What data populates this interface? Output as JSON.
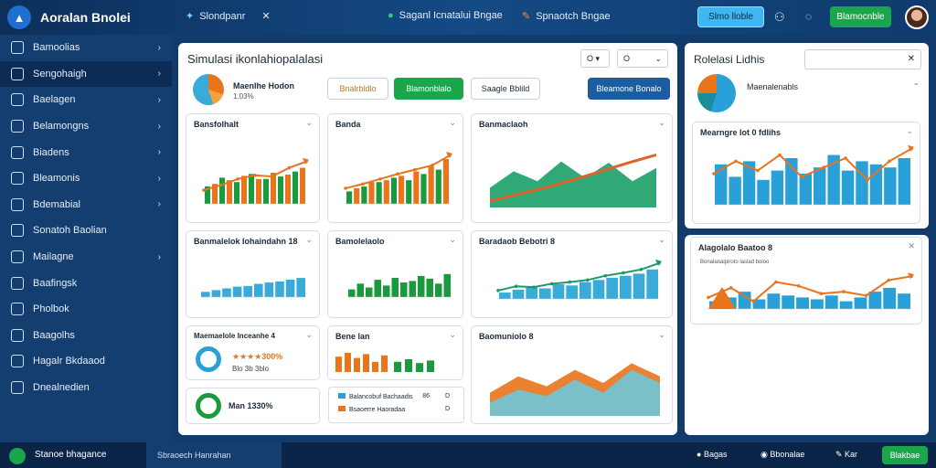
{
  "app": {
    "title": "Aoralan Bnolei",
    "tab": "Slondpanr",
    "items": [
      "Saganl Icnatalui Bngae",
      "Spnaotch Bngae"
    ],
    "primary_btn": "Slmo lloble",
    "green_btn": "Blamocnble"
  },
  "sidebar": {
    "items": [
      {
        "label": "Bamoolias",
        "chev": true
      },
      {
        "label": "Sengohaigh",
        "chev": true,
        "active": true
      },
      {
        "label": "Baelagen",
        "chev": true
      },
      {
        "label": "Belamongns",
        "chev": true
      },
      {
        "label": "Biadens",
        "chev": true
      },
      {
        "label": "Bleamonis",
        "chev": true
      },
      {
        "label": "Bdemabial",
        "chev": true
      },
      {
        "label": "Sonatoh Baolian",
        "chev": false
      },
      {
        "label": "Mailagne",
        "chev": true
      },
      {
        "label": "Baafingsk",
        "chev": false
      },
      {
        "label": "Pholbok",
        "chev": false
      },
      {
        "label": "Baagolhs",
        "chev": false
      },
      {
        "label": "Hagalr Bkdaaod",
        "chev": false
      },
      {
        "label": "Dnealnedien",
        "chev": false
      }
    ]
  },
  "main": {
    "title": "Simulasi ikonlahiopalalasi",
    "pie_label": "Maenlhe Hodon",
    "pie_value": "1.03%",
    "btn_a": "Bnalrbldlo",
    "btn_b": "Blamonblalo",
    "btn_c": "Saagle Bblild",
    "btn_d": "Bleamone Bonalo",
    "select_a": "O",
    "select_b": "O"
  },
  "cards": [
    {
      "title": "Bansfolhalt",
      "colors": [
        "#1a9a3c",
        "#e8741c"
      ]
    },
    {
      "title": "Banda",
      "colors": [
        "#e8741c",
        "#1a9a3c"
      ]
    },
    {
      "title": "Banmaclaoh"
    },
    {
      "title": "Banmalelok Iohaindahn 18"
    },
    {
      "title": "Bamolelaolo"
    },
    {
      "title": "Baradaob Bebotri 8"
    },
    {
      "title": "Maemaelole Inceanhe 4",
      "rating": "★★★★300%",
      "sub": "Blo 3b 3blo"
    },
    {
      "title": "Bene lan"
    },
    {
      "title": "Baomuniolo 8"
    },
    {
      "title": "Man 1330%"
    }
  ],
  "legend": [
    {
      "label": "Balancobuf Bachaadis",
      "v1": "86",
      "v2": "D"
    },
    {
      "label": "Bsaoerre Haoradaa",
      "v1": "",
      "v2": "D"
    }
  ],
  "right": {
    "title": "Rolelasi Lidhis",
    "pie_label": "Maenalenabls",
    "chart1_title": "Mearngre lot 0 fdlihs",
    "chart2_title": "Alagolalo Baatoo 8",
    "chart2_sub": "Bonalanalpiroto laslad boloo"
  },
  "bottom": {
    "status": "Stanoe bhagance",
    "tab": "Sbraoech Hanrahan",
    "items": [
      "Bagas",
      "Bbonalae",
      "Kar"
    ],
    "btn": "Blakbae"
  },
  "chart_data": [
    {
      "type": "bar",
      "series": [
        {
          "name": "green",
          "values": [
            28,
            42,
            35,
            48,
            40,
            44,
            52
          ]
        },
        {
          "name": "orange",
          "values": [
            32,
            38,
            45,
            40,
            50,
            47,
            58
          ]
        }
      ],
      "line": [
        22,
        30,
        40,
        46,
        44,
        58,
        68
      ]
    },
    {
      "type": "bar",
      "series": [
        {
          "values": [
            20,
            28,
            35,
            42,
            38,
            48,
            55
          ]
        },
        {
          "values": [
            25,
            35,
            38,
            45,
            52,
            60,
            72
          ]
        }
      ],
      "line": [
        25,
        32,
        40,
        48,
        55,
        62,
        78
      ]
    },
    {
      "type": "area",
      "series": [
        {
          "values": [
            30,
            55,
            40,
            70,
            45,
            68,
            40,
            60
          ]
        }
      ],
      "line": [
        10,
        20,
        30,
        42,
        55,
        68,
        80
      ]
    },
    {
      "type": "bar",
      "series": [
        {
          "values": [
            15,
            20,
            25,
            30,
            32,
            38,
            42,
            45,
            50,
            55
          ]
        }
      ]
    },
    {
      "type": "bar",
      "series": [
        {
          "values": [
            20,
            35,
            25,
            45,
            30,
            50,
            38,
            42,
            55,
            48,
            35,
            60
          ]
        }
      ]
    },
    {
      "type": "bar",
      "series": [
        {
          "values": [
            15,
            22,
            28,
            25,
            35,
            32,
            40,
            45,
            50,
            55,
            60,
            70
          ]
        }
      ],
      "line": [
        20,
        30,
        28,
        36,
        40,
        45,
        55,
        62,
        70,
        85
      ]
    },
    {
      "type": "bar",
      "series": [
        {
          "values": [
            60,
            75,
            55,
            70,
            40,
            65
          ]
        },
        {
          "values": [
            40,
            50,
            35,
            45
          ]
        }
      ]
    },
    {
      "type": "area",
      "series": [
        {
          "values": [
            20,
            40,
            30,
            55,
            35,
            70,
            50
          ]
        },
        {
          "values": [
            35,
            60,
            45,
            70,
            50,
            80,
            60
          ]
        }
      ]
    },
    {
      "type": "bar",
      "series": [
        {
          "values": [
            65,
            45,
            70,
            40,
            55,
            75,
            50,
            60,
            80,
            55,
            70,
            65,
            60,
            75
          ]
        }
      ],
      "line": [
        50,
        70,
        55,
        80,
        45,
        60,
        75,
        40,
        70,
        90
      ]
    },
    {
      "type": "bar",
      "series": [
        {
          "values": [
            20,
            30,
            45,
            25,
            40,
            35,
            30,
            25,
            35,
            20,
            30,
            45,
            55,
            40
          ]
        }
      ],
      "line": [
        30,
        55,
        20,
        70,
        60,
        40,
        45,
        35,
        75,
        85
      ]
    }
  ]
}
